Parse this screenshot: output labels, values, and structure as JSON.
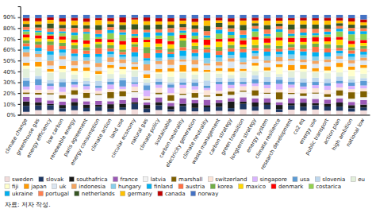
{
  "chart_data": {
    "type": "bar",
    "stacked": true,
    "grid": true,
    "legend": "bottom",
    "footnote": "자료: 저자 작성.",
    "categories": [
      "climate change",
      "greenhouse gas",
      "energy efficiency",
      "low carbon",
      "renewable energy",
      "paris agreement",
      "energy consumption",
      "climate action",
      "land use",
      "circular economy",
      "natural gas",
      "climate policy",
      "sustainable",
      "carbon neutrality",
      "electricity generation",
      "climate neutrality",
      "waste management",
      "carbon strategy",
      "green transition",
      "longterm strategy",
      "energy system",
      "climate resilience",
      "research development",
      "co2 eq",
      "energy use",
      "public transport",
      "action plan",
      "high ambition",
      "national low"
    ],
    "ylim": [
      0,
      100
    ],
    "yticks": [
      {
        "value": 0,
        "label": "0%"
      },
      {
        "value": 10,
        "label": "10%"
      },
      {
        "value": 20,
        "label": "20%"
      },
      {
        "value": 30,
        "label": "30%"
      },
      {
        "value": 40,
        "label": "40%"
      },
      {
        "value": 50,
        "label": "50%"
      },
      {
        "value": 60,
        "label": "60%"
      },
      {
        "value": 70,
        "label": "70%"
      },
      {
        "value": 80,
        "label": "80%"
      },
      {
        "value": 90,
        "label": "90%"
      }
    ],
    "series": [
      {
        "name": "sweden",
        "color": "#f2dcdb",
        "values": [
          2.746,
          4.3125,
          4.434,
          3.016,
          4.22,
          3.119,
          3.68,
          2.788,
          4.543,
          5.018,
          2.272,
          4.381,
          3,
          3.067,
          3.172,
          2.968,
          3.68,
          3.067,
          5.055,
          3.781,
          5.111,
          2.592,
          4.792,
          3.73,
          4.894,
          3.833,
          3.781,
          2.968,
          4.059
        ]
      },
      {
        "name": "slovak",
        "color": "#1f3864",
        "values": [
          5.493,
          4.3125,
          4.434,
          3.016,
          4.22,
          3.119,
          3.68,
          2.788,
          2.272,
          5.018,
          3.407,
          4.381,
          2,
          5.111,
          3.172,
          3.957,
          3.68,
          3.067,
          5.055,
          3.781,
          4.089,
          2.592,
          3.833,
          3.73,
          3.915,
          3.833,
          3.781,
          2.968,
          2.706
        ]
      },
      {
        "name": "southafrica",
        "color": "#1a1a1a",
        "values": [
          4.119,
          2.875,
          1.108,
          3.016,
          3.376,
          3.119,
          1.84,
          4.182,
          3.407,
          1.673,
          3.407,
          2.921,
          3,
          2.044,
          4.23,
          1.978,
          3.68,
          6.133,
          2.022,
          3.781,
          2.044,
          3.887,
          1.917,
          3.73,
          1.957,
          2.556,
          3.781,
          2.968,
          2.706
        ]
      },
      {
        "name": "france",
        "color": "#9b59b6",
        "values": [
          4.119,
          4.3125,
          3.325,
          3.016,
          3.376,
          3.119,
          3.68,
          2.788,
          3.407,
          4.182,
          2.272,
          4.381,
          3,
          5.111,
          3.172,
          4.946,
          2.453,
          3.067,
          4.044,
          3.781,
          4.089,
          2.592,
          4.792,
          3.73,
          3.915,
          3.833,
          3.781,
          2.968,
          4.059
        ]
      },
      {
        "name": "latvia",
        "color": "#f2f2f2",
        "values": [
          2.746,
          2.875,
          5.542,
          3.016,
          3.376,
          3.119,
          5.52,
          2.788,
          3.407,
          5.018,
          2.272,
          2.921,
          2,
          3.067,
          2.115,
          2.968,
          3.68,
          3.067,
          5.055,
          2.521,
          4.089,
          2.592,
          3.833,
          2.486,
          4.894,
          2.556,
          2.521,
          2.968,
          2.706
        ]
      },
      {
        "name": "marshall",
        "color": "#7f6000",
        "values": [
          1.373,
          1.4375,
          1.108,
          3.016,
          4.22,
          4.678,
          0.92,
          5.576,
          4.543,
          0.836,
          1.136,
          1.46,
          5,
          1.022,
          4.23,
          0.989,
          2.453,
          3.067,
          1.011,
          5.041,
          1.022,
          6.479,
          0.958,
          2.486,
          0.979,
          2.556,
          5.041,
          5.935,
          5.412
        ]
      },
      {
        "name": "switzerland",
        "color": "#fce4d6",
        "values": [
          2.746,
          2.875,
          3.325,
          3.016,
          2.532,
          3.119,
          2.76,
          2.788,
          2.272,
          4.182,
          2.272,
          4.381,
          2,
          5.111,
          3.172,
          4.946,
          2.453,
          3.067,
          4.044,
          3.781,
          4.089,
          2.592,
          4.792,
          3.73,
          3.915,
          3.833,
          2.521,
          2.968,
          2.706
        ]
      },
      {
        "name": "singapore",
        "color": "#d9b3ff",
        "values": [
          2.746,
          4.3125,
          3.325,
          4.525,
          2.532,
          3.119,
          2.76,
          4.182,
          2.272,
          2.509,
          5.679,
          2.921,
          5,
          3.067,
          3.172,
          1.978,
          6.133,
          3.067,
          2.022,
          2.521,
          3.067,
          5.183,
          2.875,
          2.486,
          2.936,
          3.833,
          3.781,
          2.968,
          2.706
        ]
      },
      {
        "name": "usa",
        "color": "#5b9bd5",
        "values": [
          5.493,
          5.75,
          2.217,
          4.525,
          2.532,
          1.559,
          1.84,
          2.788,
          5.679,
          1.673,
          4.543,
          2.921,
          3,
          2.044,
          3.172,
          1.978,
          2.453,
          3.067,
          2.022,
          3.781,
          3.067,
          3.887,
          2.875,
          3.73,
          2.936,
          2.556,
          2.521,
          2.968,
          4.059
        ]
      },
      {
        "name": "slovenia",
        "color": "#bdd7ee",
        "values": [
          2.746,
          2.875,
          3.325,
          3.016,
          2.532,
          3.119,
          4.6,
          2.788,
          2.272,
          5.018,
          2.272,
          2.921,
          2,
          4.089,
          3.172,
          4.946,
          3.68,
          3.067,
          4.044,
          3.781,
          4.089,
          2.592,
          3.833,
          3.73,
          3.915,
          3.833,
          3.781,
          2.968,
          2.706
        ]
      },
      {
        "name": "eu",
        "color": "#e2efda",
        "values": [
          8.239,
          7.1875,
          6.651,
          6.033,
          4.22,
          3.119,
          5.52,
          4.182,
          3.407,
          5.855,
          3.407,
          4.381,
          5,
          5.111,
          4.23,
          6.925,
          3.68,
          3.067,
          5.055,
          3.781,
          5.111,
          2.592,
          5.75,
          6.216,
          4.894,
          5.111,
          3.781,
          2.968,
          4.059
        ]
      },
      {
        "name": "fiji",
        "color": "#ffffcc",
        "values": [
          2.746,
          1.4375,
          1.108,
          3.016,
          3.376,
          6.237,
          0.92,
          5.576,
          4.543,
          0.836,
          1.136,
          1.46,
          5,
          1.022,
          3.172,
          0.989,
          2.453,
          3.067,
          1.011,
          5.041,
          1.022,
          6.479,
          0.958,
          2.486,
          0.979,
          2.556,
          5.041,
          5.935,
          5.412
        ]
      },
      {
        "name": "japan",
        "color": "#ff9900",
        "values": [
          2.746,
          4.3125,
          2.217,
          3.016,
          2.532,
          3.119,
          2.76,
          2.788,
          2.272,
          2.509,
          3.407,
          2.921,
          3,
          6.133,
          3.172,
          1.978,
          2.453,
          3.067,
          2.022,
          2.521,
          3.067,
          2.592,
          4.792,
          3.73,
          2.936,
          3.833,
          3.781,
          2.968,
          2.706
        ]
      },
      {
        "name": "uk",
        "color": "#dce6f1",
        "values": [
          5.493,
          4.3125,
          3.325,
          6.033,
          2.532,
          3.119,
          3.68,
          2.788,
          3.407,
          2.509,
          3.407,
          4.381,
          3,
          3.067,
          3.172,
          3.957,
          2.453,
          6.133,
          4.044,
          3.781,
          4.089,
          2.592,
          3.833,
          2.486,
          3.915,
          3.833,
          3.781,
          2.968,
          4.059
        ]
      },
      {
        "name": "indonesia",
        "color": "#f4a460",
        "values": [
          4.119,
          2.875,
          4.434,
          3.016,
          4.22,
          3.119,
          3.68,
          4.182,
          3.407,
          1.673,
          5.679,
          2.921,
          5,
          2.044,
          4.23,
          1.978,
          3.68,
          3.067,
          2.022,
          2.521,
          2.044,
          3.887,
          1.917,
          2.486,
          2.936,
          2.556,
          2.521,
          2.968,
          2.706
        ]
      },
      {
        "name": "hungary",
        "color": "#87ceeb",
        "values": [
          2.746,
          2.875,
          5.542,
          3.016,
          4.22,
          3.119,
          5.52,
          2.788,
          2.272,
          5.018,
          3.407,
          2.921,
          2,
          3.067,
          3.172,
          4.946,
          3.68,
          3.067,
          4.044,
          2.521,
          4.089,
          2.592,
          3.833,
          3.73,
          3.915,
          2.556,
          2.521,
          2.968,
          2.706
        ]
      },
      {
        "name": "finland",
        "color": "#00b0f0",
        "values": [
          2.746,
          2.875,
          3.325,
          3.016,
          2.532,
          3.119,
          2.76,
          2.788,
          2.272,
          4.182,
          2.272,
          4.381,
          3,
          5.111,
          3.172,
          4.946,
          2.453,
          3.067,
          5.055,
          2.521,
          4.089,
          2.592,
          3.833,
          3.73,
          3.915,
          3.833,
          2.521,
          2.968,
          2.706
        ]
      },
      {
        "name": "austria",
        "color": "#ff7043",
        "values": [
          2.746,
          2.875,
          5.542,
          3.016,
          4.22,
          3.119,
          5.52,
          2.788,
          2.272,
          5.018,
          4.543,
          2.921,
          2,
          3.067,
          3.172,
          2.968,
          3.68,
          3.067,
          3.033,
          2.521,
          3.067,
          2.592,
          2.875,
          2.486,
          4.894,
          3.833,
          2.521,
          2.968,
          2.706
        ]
      },
      {
        "name": "korea",
        "color": "#70ad47",
        "values": [
          2.746,
          2.875,
          3.325,
          3.016,
          3.376,
          3.119,
          3.68,
          2.788,
          2.272,
          2.509,
          5.679,
          2.921,
          3,
          6.133,
          3.172,
          1.978,
          3.68,
          3.067,
          2.022,
          2.521,
          3.067,
          2.592,
          2.875,
          3.73,
          2.936,
          3.833,
          2.521,
          2.968,
          2.706
        ]
      },
      {
        "name": "maxico",
        "color": "#ffd700",
        "values": [
          2.746,
          2.875,
          2.217,
          3.016,
          2.532,
          3.119,
          1.84,
          2.788,
          4.543,
          1.673,
          4.543,
          2.921,
          4,
          2.044,
          3.172,
          1.978,
          4.907,
          3.067,
          2.022,
          5.041,
          2.044,
          5.183,
          1.917,
          2.486,
          1.957,
          2.556,
          5.041,
          2.968,
          2.706
        ]
      },
      {
        "name": "denmark",
        "color": "#ff0000",
        "values": [
          2.746,
          2.875,
          3.325,
          3.016,
          2.532,
          3.119,
          2.76,
          2.788,
          3.407,
          4.182,
          2.272,
          4.381,
          3,
          3.067,
          3.172,
          4.946,
          2.453,
          3.067,
          4.044,
          2.521,
          4.089,
          2.592,
          3.833,
          3.73,
          3.915,
          3.833,
          2.521,
          2.968,
          2.706
        ]
      },
      {
        "name": "costarica",
        "color": "#92d050",
        "values": [
          2.746,
          2.875,
          1.108,
          3.016,
          4.22,
          6.237,
          1.84,
          5.576,
          5.679,
          1.673,
          2.272,
          2.921,
          5,
          2.044,
          3.172,
          1.978,
          4.907,
          3.067,
          2.022,
          5.041,
          2.044,
          5.183,
          1.917,
          2.486,
          1.957,
          2.556,
          5.041,
          5.935,
          5.412
        ]
      },
      {
        "name": "ukraine",
        "color": "#00b0f0",
        "values": [
          1.373,
          1.4375,
          2.217,
          1.508,
          2.532,
          1.559,
          2.76,
          2.788,
          2.272,
          1.673,
          4.543,
          2.921,
          3,
          2.044,
          3.172,
          1.978,
          3.68,
          3.067,
          3.033,
          2.521,
          2.044,
          2.592,
          1.917,
          2.486,
          1.957,
          2.556,
          2.521,
          2.968,
          2.706
        ]
      },
      {
        "name": "portugal",
        "color": "#ff7f50",
        "values": [
          2.746,
          2.875,
          3.325,
          3.016,
          4.22,
          3.119,
          3.68,
          2.788,
          2.272,
          4.182,
          2.272,
          2.921,
          4,
          3.067,
          3.172,
          3.957,
          2.453,
          3.067,
          4.044,
          2.521,
          4.089,
          2.592,
          3.833,
          3.73,
          3.915,
          2.556,
          2.521,
          2.968,
          2.706
        ]
      },
      {
        "name": "netherlands",
        "color": "#375623",
        "values": [
          2.746,
          2.875,
          4.434,
          3.016,
          2.532,
          3.119,
          4.6,
          2.788,
          4.543,
          5.018,
          4.543,
          4.381,
          3,
          3.067,
          3.172,
          4.946,
          3.68,
          3.067,
          5.055,
          2.521,
          4.089,
          2.592,
          4.792,
          3.73,
          3.915,
          3.833,
          2.521,
          2.968,
          2.706
        ]
      },
      {
        "name": "germany",
        "color": "#ffc000",
        "values": [
          2.746,
          2.875,
          3.325,
          3.016,
          4.22,
          3.119,
          4.6,
          2.788,
          2.272,
          4.182,
          3.407,
          2.921,
          3,
          3.067,
          3.172,
          4.946,
          2.453,
          3.067,
          4.044,
          2.521,
          4.089,
          2.592,
          3.833,
          3.73,
          3.915,
          3.833,
          2.521,
          2.968,
          2.706
        ]
      },
      {
        "name": "canada",
        "color": "#c00000",
        "values": [
          2.746,
          2.875,
          2.217,
          3.016,
          2.532,
          3.119,
          1.84,
          2.788,
          4.543,
          1.673,
          3.407,
          2.921,
          3,
          2.044,
          3.172,
          1.978,
          2.453,
          3.067,
          2.022,
          2.521,
          2.044,
          2.592,
          1.917,
          2.486,
          1.957,
          2.556,
          2.521,
          2.968,
          2.706
        ]
      },
      {
        "name": "norway",
        "color": "#4472c4",
        "values": [
          2.746,
          2.875,
          2.217,
          3.016,
          2.532,
          3.119,
          2.76,
          2.788,
          2.272,
          2.509,
          2.272,
          2.921,
          3,
          3.067,
          3.172,
          2.968,
          2.453,
          3.067,
          3.033,
          2.521,
          3.067,
          2.592,
          2.875,
          2.486,
          2.936,
          2.556,
          2.521,
          2.968,
          4.059
        ]
      }
    ]
  }
}
